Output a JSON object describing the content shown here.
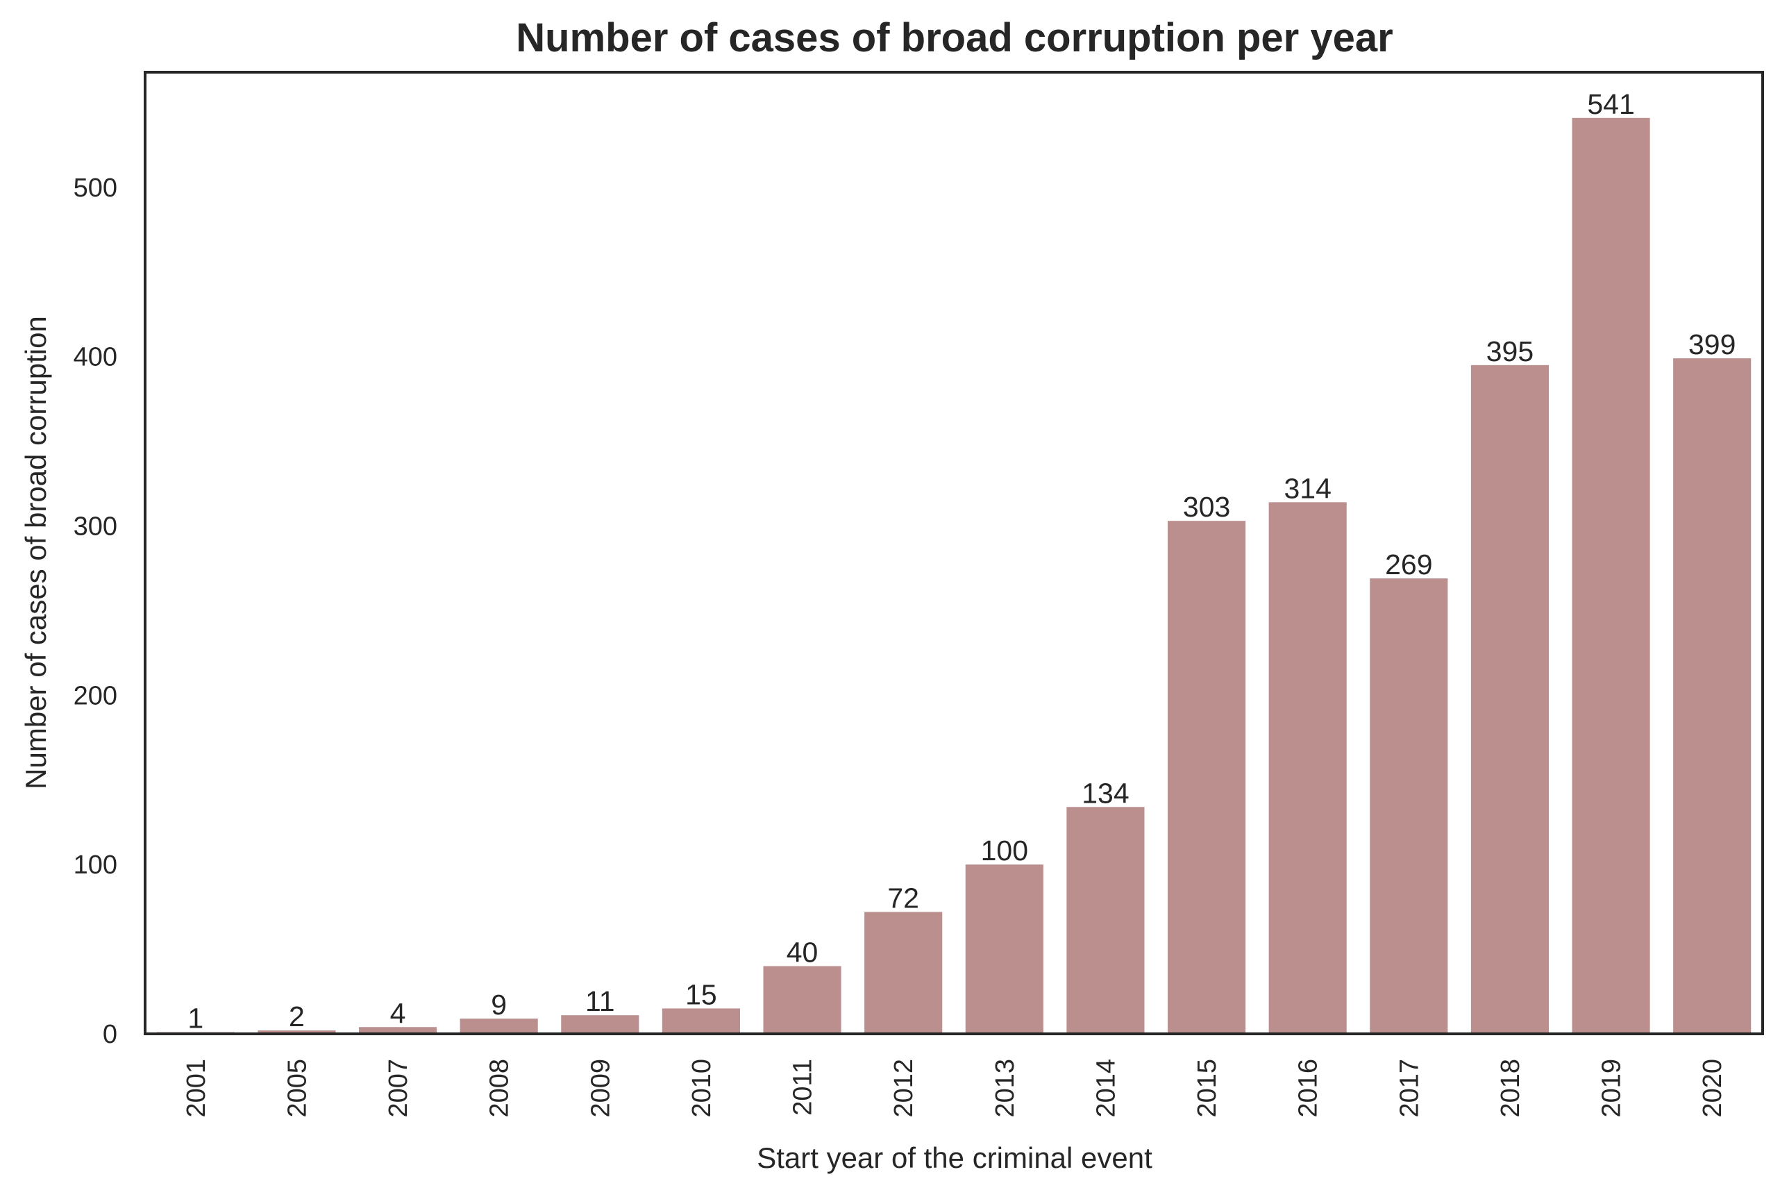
{
  "chart_data": {
    "type": "bar",
    "title": "Number of cases of broad corruption per year",
    "xlabel": "Start year of the criminal event",
    "ylabel": "Number of cases of broad corruption",
    "categories": [
      "2001",
      "2005",
      "2007",
      "2008",
      "2009",
      "2010",
      "2011",
      "2012",
      "2013",
      "2014",
      "2015",
      "2016",
      "2017",
      "2018",
      "2019",
      "2020"
    ],
    "values": [
      1,
      2,
      4,
      9,
      11,
      15,
      40,
      72,
      100,
      134,
      303,
      314,
      269,
      395,
      541,
      399
    ],
    "data_labels": [
      "1",
      "2",
      "4",
      "9",
      "11",
      "15",
      "40",
      "72",
      "100",
      "134",
      "303",
      "314",
      "269",
      "395",
      "541",
      "399"
    ],
    "yticks": [
      0,
      100,
      200,
      300,
      400,
      500
    ],
    "ytick_labels": [
      "0",
      "100",
      "200",
      "300",
      "400",
      "500"
    ],
    "ylim": [
      0,
      568
    ],
    "bar_color": "#bc8f8f",
    "grid": false,
    "legend": false,
    "xtick_rotation": "vertical"
  }
}
